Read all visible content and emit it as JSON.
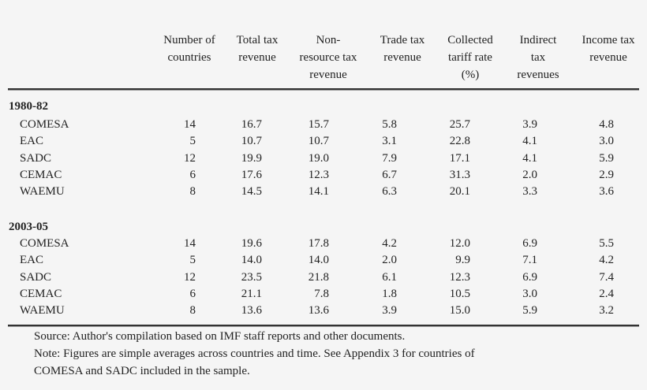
{
  "table": {
    "headers": [
      {
        "key": "region",
        "label": ""
      },
      {
        "key": "num_countries",
        "label": "Number of\ncountries"
      },
      {
        "key": "total_tax",
        "label": "Total tax\nrevenue"
      },
      {
        "key": "non_resource_tax",
        "label": "Non-\nresource tax\nrevenue"
      },
      {
        "key": "trade_tax",
        "label": "Trade tax\nrevenue"
      },
      {
        "key": "collected_tariff",
        "label": "Collected\ntariff rate\n(%)"
      },
      {
        "key": "indirect_tax",
        "label": "Indirect\ntax\nrevenues"
      },
      {
        "key": "income_tax",
        "label": "Income tax\nrevenue"
      }
    ],
    "groups": [
      {
        "label": "1980-82",
        "rows": [
          [
            "COMESA",
            "14",
            "16.7",
            "15.7",
            "5.8",
            "25.7",
            "3.9",
            "4.8"
          ],
          [
            "EAC",
            "5",
            "10.7",
            "10.7",
            "3.1",
            "22.8",
            "4.1",
            "3.0"
          ],
          [
            "SADC",
            "12",
            "19.9",
            "19.0",
            "7.9",
            "17.1",
            "4.1",
            "5.9"
          ],
          [
            "CEMAC",
            "6",
            "17.6",
            "12.3",
            "6.7",
            "31.3",
            "2.0",
            "2.9"
          ],
          [
            "WAEMU",
            "8",
            "14.5",
            "14.1",
            "6.3",
            "20.1",
            "3.3",
            "3.6"
          ]
        ]
      },
      {
        "label": "2003-05",
        "rows": [
          [
            "COMESA",
            "14",
            "19.6",
            "17.8",
            "4.2",
            "12.0",
            "6.9",
            "5.5"
          ],
          [
            "EAC",
            "5",
            "14.0",
            "14.0",
            "2.0",
            "9.9",
            "7.1",
            "4.2"
          ],
          [
            "SADC",
            "12",
            "23.5",
            "21.8",
            "6.1",
            "12.3",
            "6.9",
            "7.4"
          ],
          [
            "CEMAC",
            "6",
            "21.1",
            "7.8",
            "1.8",
            "10.5",
            "3.0",
            "2.4"
          ],
          [
            "WAEMU",
            "8",
            "13.6",
            "13.6",
            "3.9",
            "15.0",
            "5.9",
            "3.2"
          ]
        ]
      }
    ]
  },
  "notes": {
    "source": "Source: Author's compilation based on IMF staff reports and other documents.",
    "note_line1": "Note: Figures are simple averages across countries and time. See Appendix 3 for countries of",
    "note_line2": "COMESA and SADC included in the sample."
  },
  "colors": {
    "background": "#f5f5f5",
    "text": "#222222",
    "rule": "#333333"
  }
}
